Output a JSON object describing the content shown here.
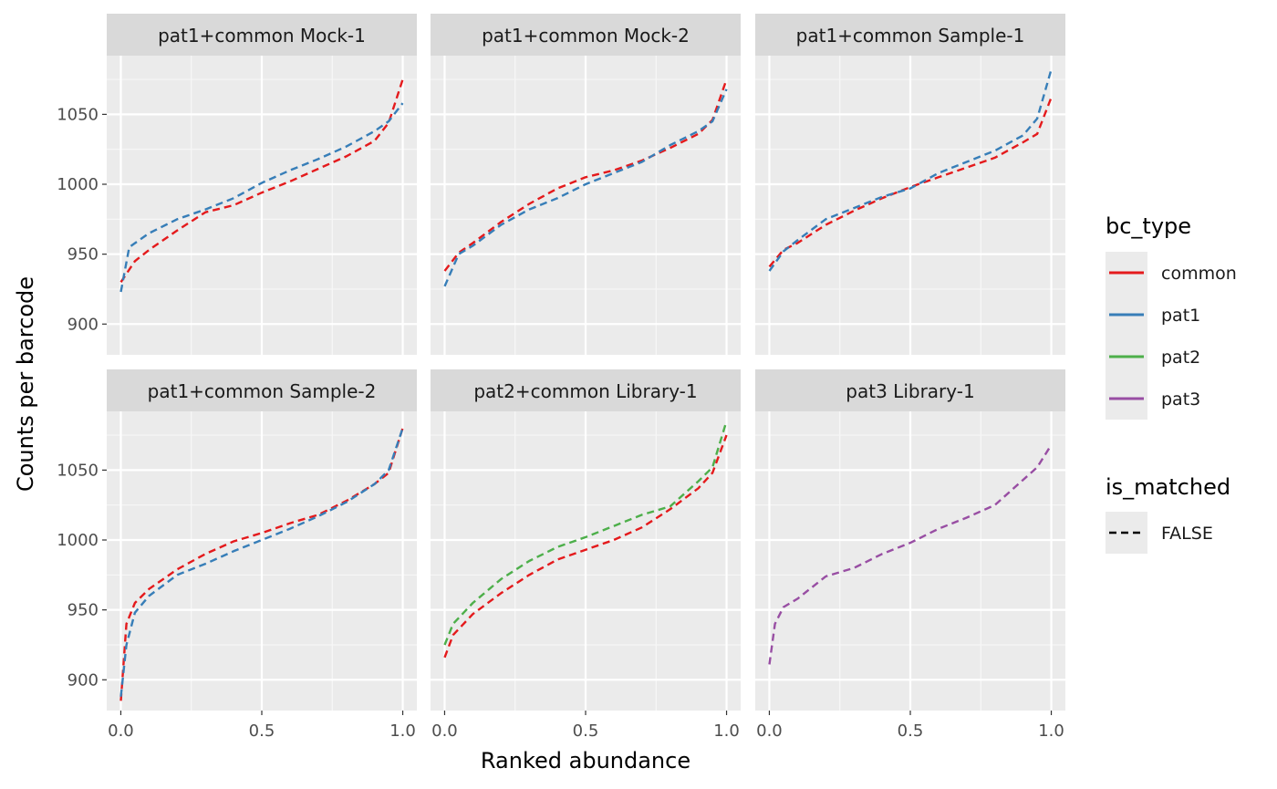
{
  "chart_data": {
    "type": "line",
    "xlabel": "Ranked abundance",
    "ylabel": "Counts per barcode",
    "xlim": [
      -0.05,
      1.05
    ],
    "ylim": [
      878,
      1092
    ],
    "x_ticks": [
      0.0,
      0.5,
      1.0
    ],
    "x_tick_labels": [
      "0.0",
      "0.5",
      "1.0"
    ],
    "y_ticks": [
      900,
      950,
      1000,
      1050
    ],
    "y_tick_labels": [
      "900",
      "950",
      "1000",
      "1050"
    ],
    "grid": true,
    "line_style": "dashed",
    "legend_placement": "right",
    "legends": [
      {
        "title": "bc_type",
        "entries": [
          {
            "label": "common",
            "color": "#E41A1C"
          },
          {
            "label": "pat1",
            "color": "#377EB8"
          },
          {
            "label": "pat2",
            "color": "#4DAF4A"
          },
          {
            "label": "pat3",
            "color": "#984EA3"
          }
        ]
      },
      {
        "title": "is_matched",
        "entries": [
          {
            "label": "FALSE",
            "linetype": "dashed"
          }
        ]
      }
    ],
    "panels": [
      {
        "title": "pat1+common Mock-1",
        "series": [
          {
            "name": "common",
            "x": [
              0.0,
              0.05,
              0.1,
              0.2,
              0.3,
              0.4,
              0.5,
              0.6,
              0.7,
              0.8,
              0.9,
              0.95,
              1.0
            ],
            "y": [
              930,
              945,
              953,
              967,
              980,
              985,
              994,
              1002,
              1011,
              1020,
              1031,
              1044,
              1075
            ]
          },
          {
            "name": "pat1",
            "x": [
              0.0,
              0.03,
              0.1,
              0.2,
              0.3,
              0.4,
              0.5,
              0.6,
              0.7,
              0.8,
              0.9,
              0.95,
              1.0
            ],
            "y": [
              923,
              955,
              965,
              975,
              982,
              990,
              1001,
              1010,
              1018,
              1027,
              1038,
              1045,
              1058
            ]
          }
        ]
      },
      {
        "title": "pat1+common Mock-2",
        "series": [
          {
            "name": "common",
            "x": [
              0.0,
              0.05,
              0.1,
              0.2,
              0.3,
              0.4,
              0.5,
              0.6,
              0.7,
              0.8,
              0.9,
              0.95,
              1.0
            ],
            "y": [
              938,
              951,
              958,
              973,
              986,
              997,
              1005,
              1010,
              1017,
              1026,
              1036,
              1046,
              1075
            ]
          },
          {
            "name": "pat1",
            "x": [
              0.0,
              0.05,
              0.1,
              0.2,
              0.3,
              0.4,
              0.5,
              0.6,
              0.7,
              0.8,
              0.9,
              0.95,
              1.0
            ],
            "y": [
              927,
              950,
              956,
              971,
              982,
              990,
              1000,
              1008,
              1016,
              1028,
              1038,
              1045,
              1068
            ]
          }
        ]
      },
      {
        "title": "pat1+common Sample-1",
        "series": [
          {
            "name": "common",
            "x": [
              0.0,
              0.05,
              0.1,
              0.2,
              0.3,
              0.4,
              0.5,
              0.6,
              0.7,
              0.8,
              0.9,
              0.95,
              1.0
            ],
            "y": [
              941,
              953,
              958,
              971,
              981,
              990,
              998,
              1005,
              1012,
              1019,
              1030,
              1036,
              1062
            ]
          },
          {
            "name": "pat1",
            "x": [
              0.0,
              0.05,
              0.1,
              0.2,
              0.3,
              0.4,
              0.5,
              0.6,
              0.7,
              0.8,
              0.9,
              0.95,
              1.0
            ],
            "y": [
              938,
              952,
              960,
              975,
              983,
              991,
              997,
              1008,
              1016,
              1024,
              1035,
              1047,
              1082
            ]
          }
        ]
      },
      {
        "title": "pat1+common Sample-2",
        "series": [
          {
            "name": "common",
            "x": [
              0.0,
              0.02,
              0.05,
              0.1,
              0.2,
              0.3,
              0.4,
              0.5,
              0.6,
              0.7,
              0.8,
              0.9,
              0.95,
              1.0
            ],
            "y": [
              885,
              940,
              955,
              965,
              979,
              990,
              999,
              1005,
              1012,
              1018,
              1028,
              1040,
              1048,
              1080
            ]
          },
          {
            "name": "pat1",
            "x": [
              0.0,
              0.02,
              0.05,
              0.1,
              0.2,
              0.3,
              0.4,
              0.5,
              0.6,
              0.7,
              0.8,
              0.9,
              0.95,
              1.0
            ],
            "y": [
              888,
              925,
              948,
              960,
              975,
              983,
              992,
              1000,
              1008,
              1017,
              1027,
              1040,
              1050,
              1080
            ]
          }
        ]
      },
      {
        "title": "pat2+common Library-1",
        "series": [
          {
            "name": "common",
            "x": [
              0.0,
              0.03,
              0.1,
              0.2,
              0.3,
              0.4,
              0.5,
              0.6,
              0.7,
              0.8,
              0.9,
              0.95,
              1.0
            ],
            "y": [
              916,
              932,
              947,
              962,
              975,
              986,
              993,
              1000,
              1009,
              1022,
              1037,
              1048,
              1075
            ]
          },
          {
            "name": "pat2",
            "x": [
              0.0,
              0.03,
              0.1,
              0.2,
              0.3,
              0.4,
              0.5,
              0.6,
              0.7,
              0.8,
              0.9,
              0.95,
              1.0
            ],
            "y": [
              925,
              940,
              955,
              972,
              985,
              995,
              1002,
              1010,
              1018,
              1024,
              1042,
              1052,
              1085
            ]
          }
        ]
      },
      {
        "title": "pat3 Library-1",
        "series": [
          {
            "name": "pat3",
            "x": [
              0.0,
              0.02,
              0.05,
              0.1,
              0.2,
              0.3,
              0.4,
              0.5,
              0.6,
              0.7,
              0.8,
              0.9,
              0.95,
              1.0
            ],
            "y": [
              911,
              940,
              952,
              958,
              974,
              980,
              990,
              998,
              1008,
              1016,
              1025,
              1043,
              1052,
              1068
            ]
          }
        ]
      }
    ]
  }
}
